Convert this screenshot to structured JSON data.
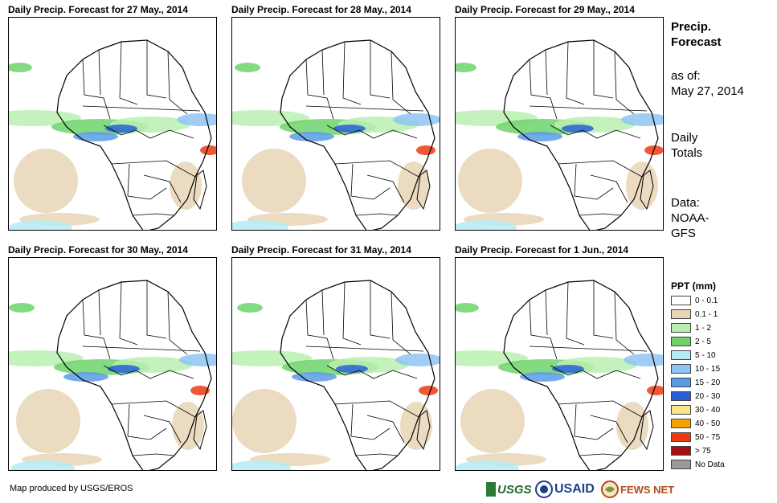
{
  "panels": [
    {
      "title": "Daily Precip. Forecast for 27 May., 2014"
    },
    {
      "title": "Daily Precip. Forecast for 28 May., 2014"
    },
    {
      "title": "Daily Precip. Forecast for 29 May., 2014"
    },
    {
      "title": "Daily Precip. Forecast for 30 May., 2014"
    },
    {
      "title": "Daily Precip. Forecast for 31 May., 2014"
    },
    {
      "title": "Daily Precip. Forecast for 1 Jun., 2014"
    }
  ],
  "side": {
    "heading1": "Precip.",
    "heading2": "Forecast",
    "asof1": "as of:",
    "asof2": "May 27, 2014",
    "daily1": "Daily",
    "daily2": "Totals",
    "data1": "Data:",
    "data2": "NOAA-",
    "data3": "GFS"
  },
  "legend": {
    "title": "PPT (mm)",
    "items": [
      {
        "label": "0 - 0.1",
        "color": "#ffffff"
      },
      {
        "label": "0.1 - 1",
        "color": "#e8d5b5"
      },
      {
        "label": "1 - 2",
        "color": "#b8f0b0"
      },
      {
        "label": "2 - 5",
        "color": "#6ed46a"
      },
      {
        "label": "5 - 10",
        "color": "#b4ecf4"
      },
      {
        "label": "10 - 15",
        "color": "#8ec4f2"
      },
      {
        "label": "15 - 20",
        "color": "#5a9be6"
      },
      {
        "label": "20 - 30",
        "color": "#2a5fd8"
      },
      {
        "label": "30 - 40",
        "color": "#fbe58a"
      },
      {
        "label": "40 - 50",
        "color": "#f5a200"
      },
      {
        "label": "50 - 75",
        "color": "#ee3a12"
      },
      {
        "label": "> 75",
        "color": "#a80f14"
      },
      {
        "label": "No Data",
        "color": "#9a9a9a"
      }
    ]
  },
  "footer": {
    "credit": "Map produced by USGS/EROS",
    "usgs": "USGS",
    "usaid": "USAID",
    "fewsnet": "FEWS NET"
  }
}
